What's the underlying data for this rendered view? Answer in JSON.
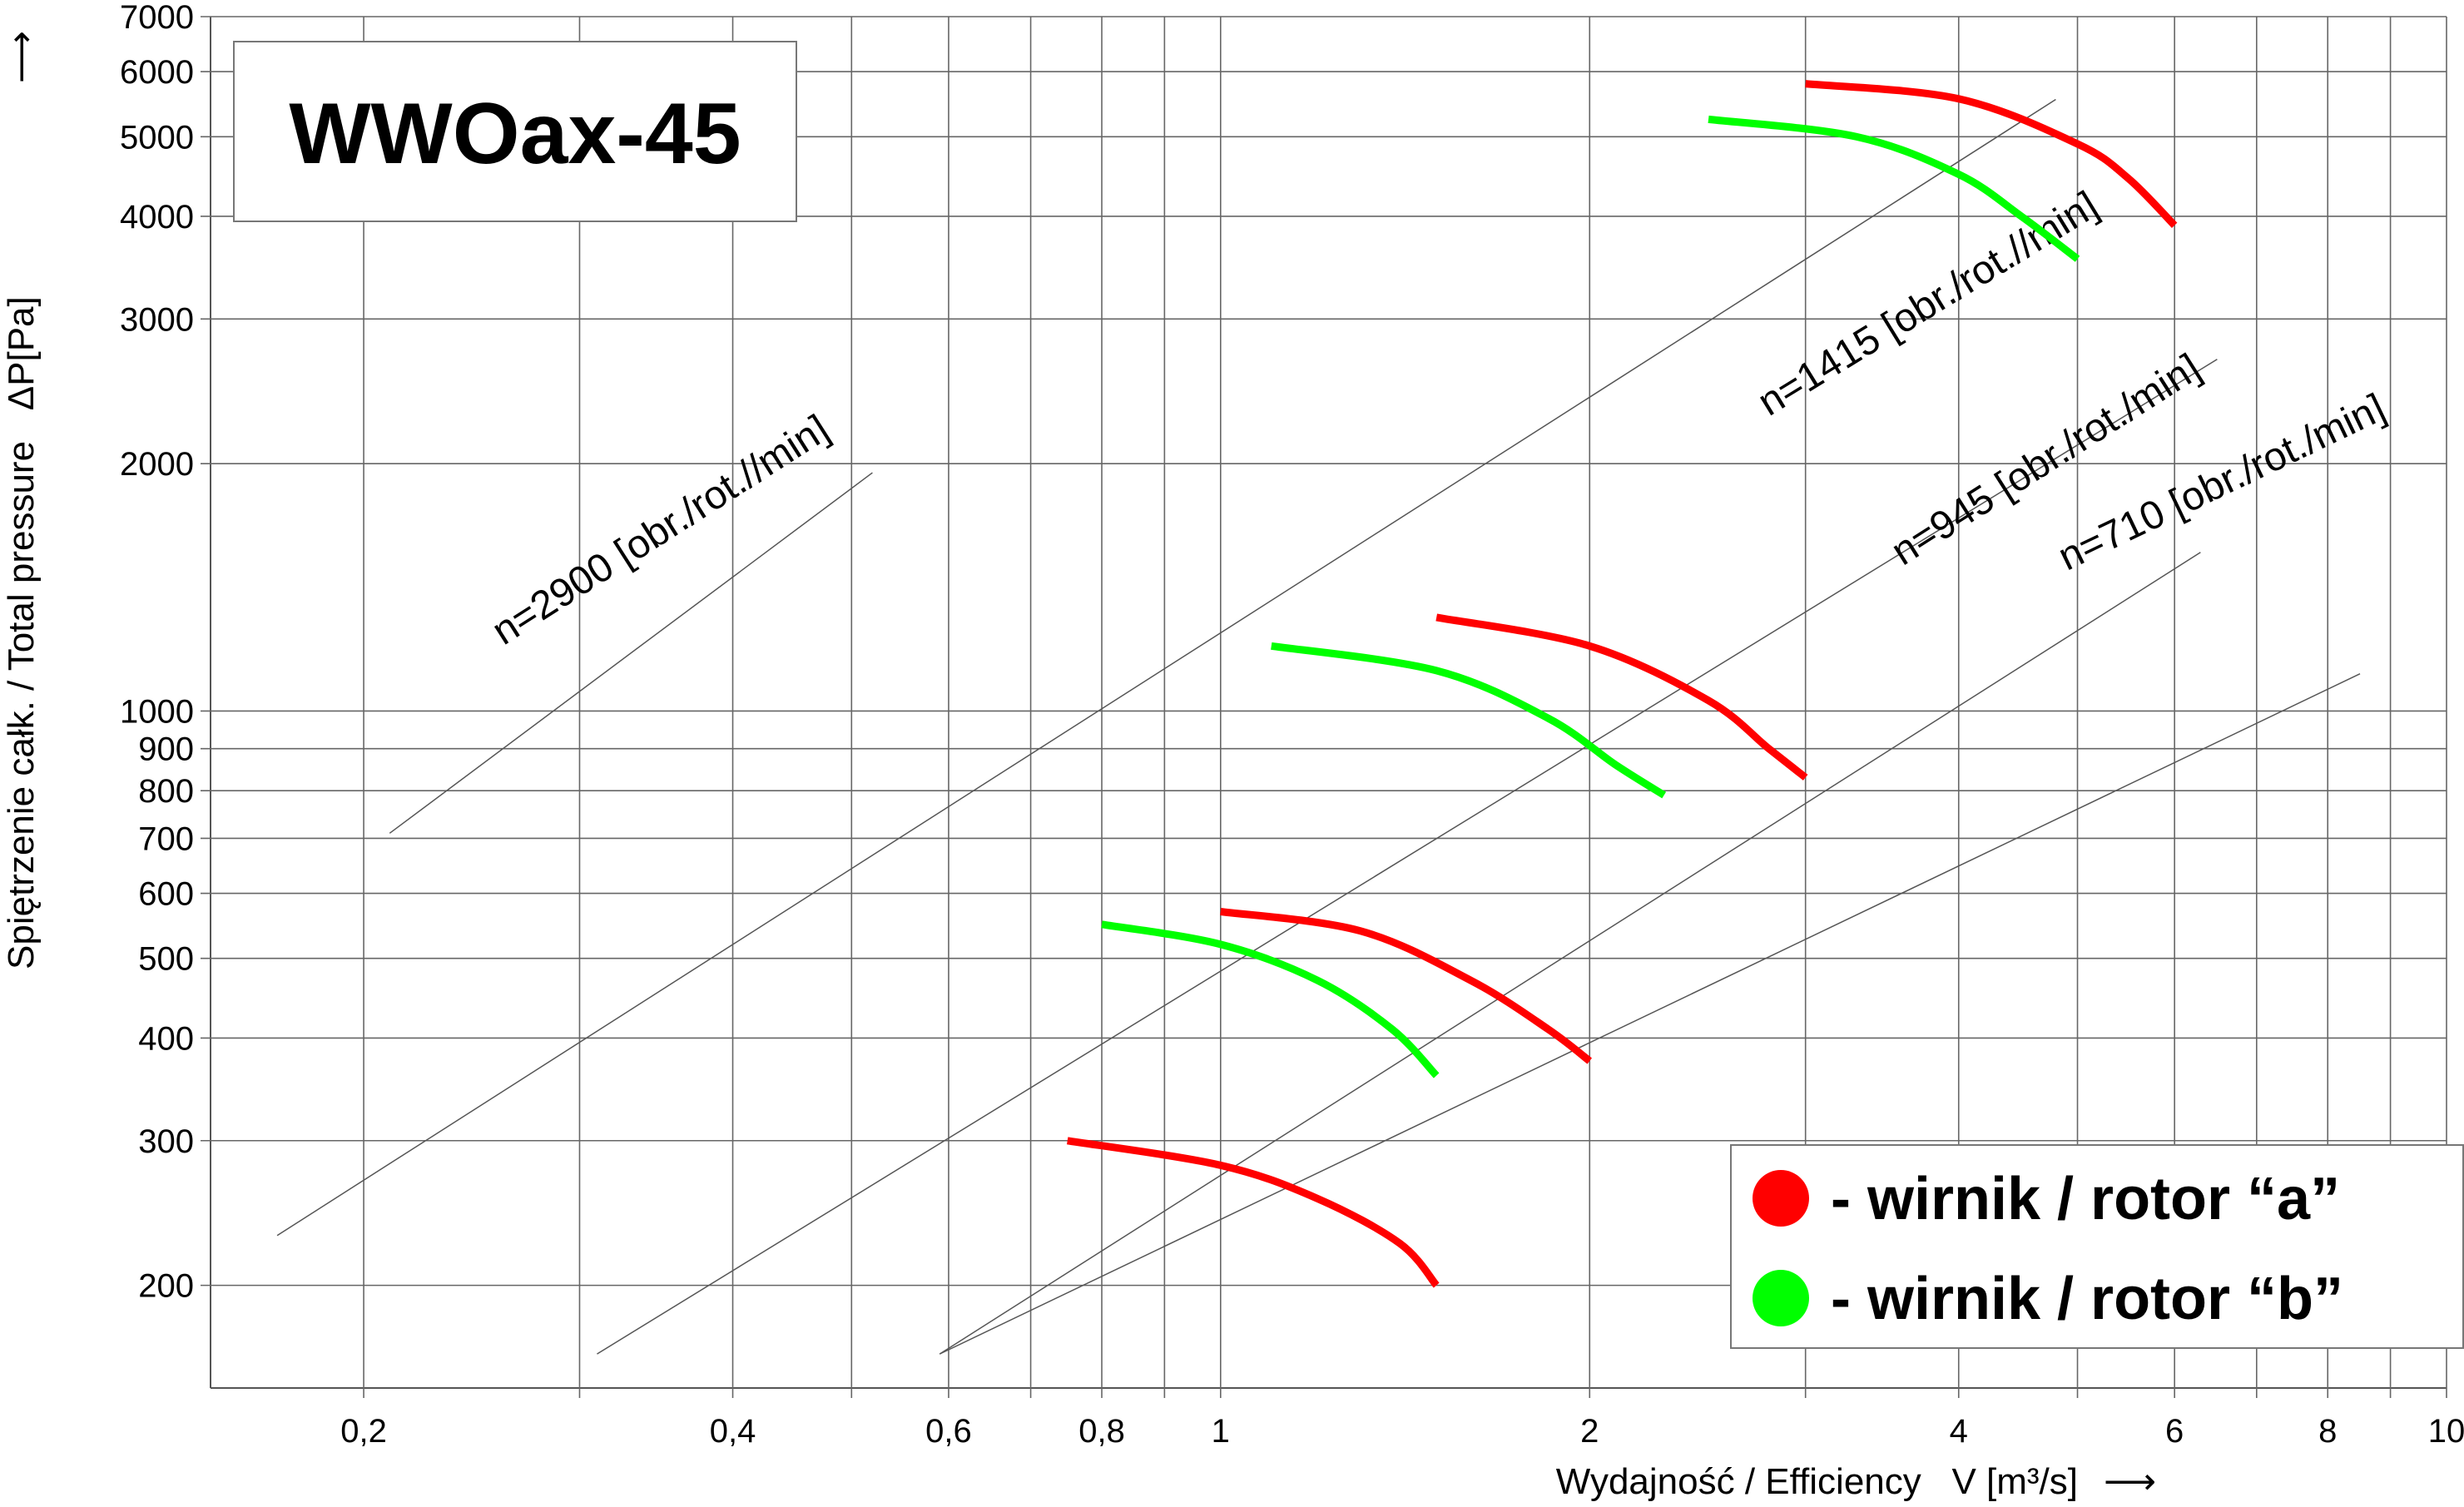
{
  "chart_data": {
    "type": "line",
    "title": "WWOax-45",
    "xlabel": "Wydajność / Efficiency   V [m³/s]",
    "xlabel_arrow": "⟶",
    "ylabel": "Spiętrzenie całk. / Total pressure   ΔP[Pa]",
    "ylabel_arrow": "⟶",
    "x_scale": "log",
    "y_scale": "log",
    "xlim": [
      0.15,
      10
    ],
    "ylim": [
      150,
      7000
    ],
    "grid": true,
    "x_gridlines": [
      0.2,
      0.3,
      0.4,
      0.5,
      0.6,
      0.7,
      0.8,
      0.9,
      1,
      2,
      3,
      4,
      5,
      6,
      7,
      8,
      9,
      10
    ],
    "x_ticks": [
      {
        "value": 0.2,
        "label": "0,2"
      },
      {
        "value": 0.4,
        "label": "0,4"
      },
      {
        "value": 0.6,
        "label": "0,6"
      },
      {
        "value": 0.8,
        "label": "0,8"
      },
      {
        "value": 1,
        "label": "1"
      },
      {
        "value": 2,
        "label": "2"
      },
      {
        "value": 4,
        "label": "4"
      },
      {
        "value": 6,
        "label": "6"
      },
      {
        "value": 8,
        "label": "8"
      },
      {
        "value": 10,
        "label": "10"
      }
    ],
    "y_ticks": [
      {
        "value": 200,
        "label": "200"
      },
      {
        "value": 300,
        "label": "300"
      },
      {
        "value": 400,
        "label": "400"
      },
      {
        "value": 500,
        "label": "500"
      },
      {
        "value": 600,
        "label": "600"
      },
      {
        "value": 700,
        "label": "700"
      },
      {
        "value": 800,
        "label": "800"
      },
      {
        "value": 900,
        "label": "900"
      },
      {
        "value": 1000,
        "label": "1000"
      },
      {
        "value": 2000,
        "label": "2000"
      },
      {
        "value": 3000,
        "label": "3000"
      },
      {
        "value": 4000,
        "label": "4000"
      },
      {
        "value": 5000,
        "label": "5000"
      },
      {
        "value": 6000,
        "label": "6000"
      },
      {
        "value": 7000,
        "label": "7000"
      }
    ],
    "speed_lines": [
      {
        "label": "n=2900 [obr./rot.//min]",
        "from": [
          0.17,
          230
        ],
        "to": [
          4.8,
          5550
        ]
      },
      {
        "label": "n=1415 [obr./rot.//min]",
        "from": [
          0.31,
          165
        ],
        "to": [
          6.5,
          2680
        ]
      },
      {
        "label": "n=945 [obr./rot./min]",
        "from": [
          0.59,
          165
        ],
        "to": [
          6.3,
          1560
        ]
      },
      {
        "label": "n=710 [obr./rot./min]",
        "from": [
          0.21,
          710
        ],
        "to": [
          0.52,
          1950
        ],
        "style": "short"
      },
      {
        "label": "n=710 [obr./rot./min]",
        "from": [
          0.59,
          165
        ],
        "to": [
          8.5,
          1110
        ],
        "style": "label_only"
      }
    ],
    "series": [
      {
        "name": "- wirnik / rotor “a”",
        "color": "#ff0000",
        "curves": [
          {
            "speed": 2900,
            "points": [
              [
                3.0,
                5800
              ],
              [
                4.0,
                5560
              ],
              [
                5.0,
                4900
              ],
              [
                5.5,
                4450
              ],
              [
                6.0,
                3900
              ]
            ]
          },
          {
            "speed": 1415,
            "points": [
              [
                1.5,
                1300
              ],
              [
                2.0,
                1200
              ],
              [
                2.5,
                1030
              ],
              [
                2.8,
                900
              ],
              [
                3.0,
                830
              ]
            ]
          },
          {
            "speed": 945,
            "points": [
              [
                1.0,
                570
              ],
              [
                1.3,
                540
              ],
              [
                1.6,
                470
              ],
              [
                1.85,
                410
              ],
              [
                2.0,
                375
              ]
            ]
          },
          {
            "speed": 710,
            "points": [
              [
                0.75,
                300
              ],
              [
                1.0,
                280
              ],
              [
                1.2,
                255
              ],
              [
                1.4,
                225
              ],
              [
                1.5,
                200
              ]
            ]
          }
        ]
      },
      {
        "name": "- wirnik / rotor “b”",
        "color": "#00ff00",
        "curves": [
          {
            "speed": 2900,
            "points": [
              [
                2.5,
                5250
              ],
              [
                3.3,
                5000
              ],
              [
                4.0,
                4500
              ],
              [
                4.5,
                4000
              ],
              [
                5.0,
                3550
              ]
            ]
          },
          {
            "speed": 1415,
            "points": [
              [
                1.1,
                1200
              ],
              [
                1.5,
                1120
              ],
              [
                1.85,
                980
              ],
              [
                2.1,
                860
              ],
              [
                2.3,
                790
              ]
            ]
          },
          {
            "speed": 945,
            "points": [
              [
                0.8,
                550
              ],
              [
                1.0,
                520
              ],
              [
                1.2,
                470
              ],
              [
                1.38,
                410
              ],
              [
                1.5,
                360
              ]
            ]
          }
        ]
      }
    ],
    "legend": {
      "placement": "bottom-right"
    }
  }
}
